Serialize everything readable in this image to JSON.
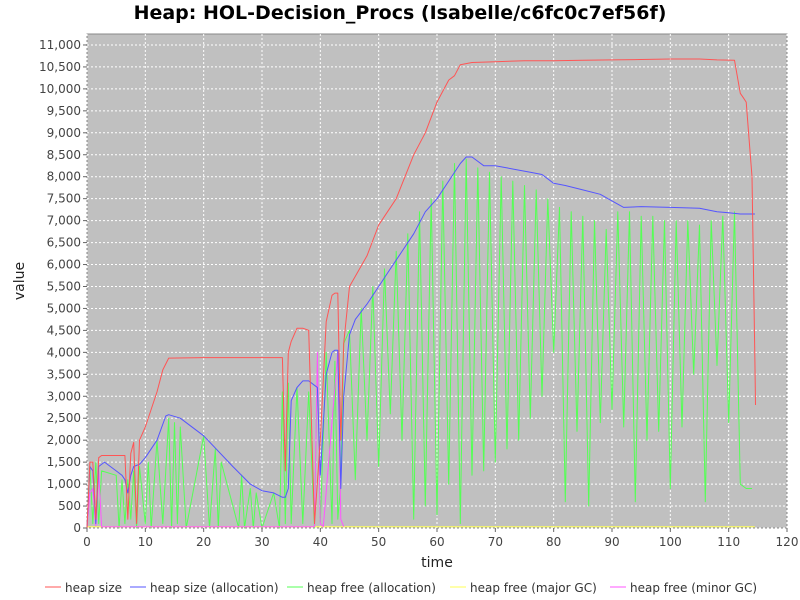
{
  "chart_data": {
    "type": "line",
    "title": "Heap: HOL-Decision_Procs (Isabelle/c6fc0c7ef56f)",
    "xlabel": "time",
    "ylabel": "value",
    "xlim": [
      0,
      120
    ],
    "ylim": [
      0,
      11250
    ],
    "xticks": [
      0,
      10,
      20,
      30,
      40,
      50,
      60,
      70,
      80,
      90,
      100,
      110,
      120
    ],
    "yticks": [
      0,
      500,
      1000,
      1500,
      2000,
      2500,
      3000,
      3500,
      4000,
      4500,
      5000,
      5500,
      6000,
      6500,
      7000,
      7500,
      8000,
      8500,
      9000,
      9500,
      10000,
      10500,
      11000
    ],
    "ytick_labels": [
      "0",
      "500",
      "1,000",
      "1,500",
      "2,000",
      "2,500",
      "3,000",
      "3,500",
      "4,000",
      "4,500",
      "5,000",
      "5,500",
      "6,000",
      "6,500",
      "7,000",
      "7,500",
      "8,000",
      "8,500",
      "9,000",
      "9,500",
      "10,000",
      "10,500",
      "11,000"
    ],
    "grid": true,
    "legend_position": "bottom",
    "plot_background": "#c0c0c0",
    "series": [
      {
        "name": "heap size",
        "color": "#ff5555",
        "x": [
          0,
          0.5,
          1,
          1.5,
          2,
          2.5,
          5,
          6.5,
          7,
          7.5,
          8,
          8.5,
          9,
          10,
          12,
          13,
          14,
          20,
          25,
          30,
          33.5,
          34,
          34.5,
          35,
          36,
          37,
          38,
          39,
          40,
          41,
          42,
          42.5,
          43,
          43.5,
          44,
          45,
          48,
          50,
          53,
          56,
          58,
          60,
          62,
          63,
          64,
          66,
          70,
          75,
          78,
          80,
          85,
          90,
          95,
          100,
          105,
          108,
          111,
          112,
          112.5,
          113,
          114,
          114.5,
          114.6
        ],
        "y": [
          0,
          1500,
          1500,
          200,
          1600,
          1650,
          1650,
          1650,
          200,
          1700,
          1950,
          100,
          2000,
          2300,
          3100,
          3600,
          3870,
          3880,
          3880,
          3880,
          3880,
          1300,
          4000,
          4250,
          4550,
          4550,
          4500,
          100,
          2000,
          4700,
          5300,
          5350,
          5350,
          2000,
          4200,
          5500,
          6200,
          6900,
          7500,
          8500,
          9000,
          9700,
          10200,
          10300,
          10550,
          10600,
          10620,
          10640,
          10640,
          10640,
          10650,
          10660,
          10670,
          10680,
          10680,
          10660,
          10650,
          9900,
          9800,
          9700,
          8000,
          3800,
          2800
        ]
      },
      {
        "name": "heap size (allocation)",
        "color": "#5555ff",
        "x": [
          0,
          0.5,
          1,
          1.5,
          2,
          3,
          5,
          6,
          6.5,
          7,
          7.5,
          8,
          9,
          10,
          12,
          13.5,
          14,
          16,
          20,
          25,
          28,
          30,
          32,
          33.5,
          34,
          34.5,
          35,
          36,
          37,
          38,
          39,
          39.5,
          40,
          41,
          42,
          42.5,
          43,
          43.5,
          44,
          45,
          46,
          48,
          50,
          52,
          54,
          56,
          58,
          60,
          62,
          64,
          65,
          66,
          68,
          70,
          72,
          74,
          76,
          78,
          80,
          82,
          85,
          88,
          90,
          92,
          95,
          100,
          105,
          108,
          110,
          112,
          114.5
        ],
        "y": [
          0,
          1400,
          1300,
          100,
          1400,
          1500,
          1300,
          1200,
          1100,
          800,
          1200,
          1400,
          1450,
          1600,
          2000,
          2550,
          2580,
          2500,
          2100,
          1400,
          1000,
          850,
          800,
          700,
          700,
          900,
          2900,
          3200,
          3350,
          3350,
          3250,
          3200,
          1200,
          3500,
          4000,
          4050,
          4050,
          900,
          3000,
          4400,
          4750,
          5100,
          5500,
          5900,
          6300,
          6700,
          7200,
          7500,
          7900,
          8300,
          8450,
          8450,
          8250,
          8250,
          8200,
          8150,
          8100,
          8050,
          7850,
          7800,
          7700,
          7600,
          7450,
          7300,
          7320,
          7300,
          7280,
          7200,
          7180,
          7150,
          7150
        ]
      },
      {
        "name": "heap free (allocation)",
        "color": "#55ff55",
        "x": [
          0,
          0.5,
          1,
          1.5,
          2,
          2.5,
          5,
          5.5,
          6,
          6.5,
          7,
          7.5,
          8,
          8.5,
          9,
          10,
          10.5,
          11,
          12,
          13,
          14,
          14.5,
          15,
          15.5,
          16,
          17,
          20,
          21,
          22,
          22.5,
          23,
          26,
          26.5,
          27,
          28,
          28.5,
          29,
          30,
          32,
          33,
          33.5,
          34,
          34.5,
          35,
          36,
          37,
          38,
          39,
          39.5,
          40,
          41,
          42,
          42.5,
          43,
          43.5,
          44,
          45,
          46,
          47,
          48,
          49,
          50,
          51,
          52,
          53,
          54,
          55,
          56,
          57,
          58,
          59,
          60,
          61,
          62,
          63,
          64,
          65,
          66,
          67,
          68,
          69,
          70,
          71,
          72,
          73,
          74,
          75,
          76,
          77,
          78,
          79,
          80,
          81,
          82,
          83,
          84,
          85,
          86,
          87,
          88,
          89,
          90,
          91,
          92,
          93,
          94,
          95,
          96,
          97,
          98,
          99,
          100,
          101,
          102,
          103,
          104,
          105,
          106,
          107,
          108,
          109,
          110,
          111,
          112,
          113,
          114
        ],
        "y": [
          0,
          1400,
          100,
          1500,
          100,
          1300,
          1200,
          0,
          1100,
          100,
          1100,
          200,
          1300,
          0,
          1400,
          100,
          1500,
          0,
          2000,
          100,
          2500,
          0,
          2400,
          100,
          2300,
          0,
          2100,
          0,
          1800,
          0,
          1500,
          0,
          1200,
          0,
          900,
          0,
          800,
          0,
          800,
          0,
          3100,
          100,
          3300,
          100,
          3200,
          100,
          3100,
          0,
          3800,
          100,
          4000,
          100,
          3800,
          200,
          1000,
          4200,
          4500,
          1100,
          5000,
          2000,
          5500,
          1400,
          5900,
          2600,
          6300,
          2000,
          6700,
          200,
          7200,
          500,
          7500,
          300,
          7900,
          1000,
          8300,
          100,
          8400,
          1200,
          8200,
          1300,
          8100,
          1500,
          8000,
          1800,
          7900,
          2000,
          7800,
          2500,
          7700,
          3000,
          7500,
          4000,
          7300,
          600,
          7200,
          2200,
          7100,
          500,
          7000,
          2400,
          6800,
          2700,
          7200,
          2300,
          7200,
          600,
          7100,
          2000,
          7100,
          2200,
          7000,
          900,
          7000,
          2300,
          7000,
          3500,
          6900,
          600,
          7000,
          3700,
          7100,
          2400,
          7200,
          1000,
          900,
          900
        ]
      },
      {
        "name": "heap free (major GC)",
        "color": "#ffff55",
        "x": [
          0,
          114.5
        ],
        "y": [
          30,
          30
        ]
      },
      {
        "name": "heap free (minor GC)",
        "color": "#ff55ff",
        "x": [
          0,
          0.5,
          1,
          1.5,
          2,
          2.5,
          3,
          39,
          39.5,
          40,
          40.5,
          43,
          43.5,
          44
        ],
        "y": [
          0,
          800,
          900,
          50,
          1300,
          30,
          30,
          30,
          4000,
          100,
          30,
          4000,
          200,
          30
        ]
      }
    ]
  }
}
